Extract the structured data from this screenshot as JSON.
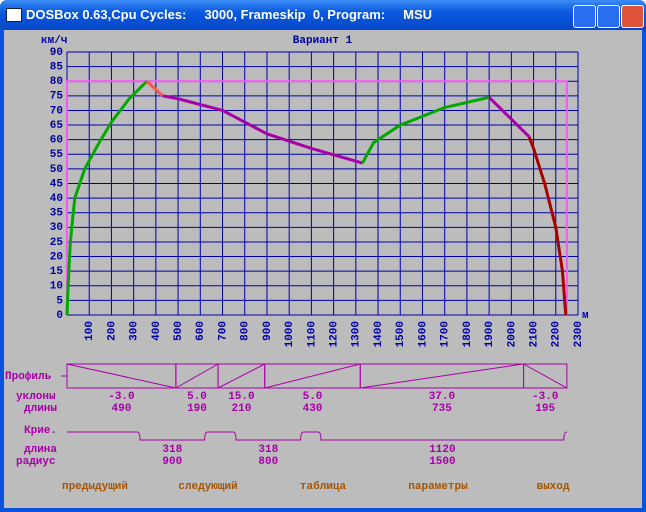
{
  "window": {
    "title": "DOSBox 0.63,Cpu Cycles:     3000, Frameskip  0, Program:     MSU"
  },
  "chart_data": {
    "type": "line",
    "title": "Вариант 1",
    "y_label": "км/ч",
    "x_label": "м",
    "xlim": [
      0,
      2300
    ],
    "ylim": [
      0,
      90
    ],
    "xticks": [
      100,
      200,
      300,
      400,
      500,
      600,
      700,
      800,
      900,
      1000,
      1100,
      1200,
      1300,
      1400,
      1500,
      1600,
      1700,
      1800,
      1900,
      2000,
      2100,
      2200,
      2300
    ],
    "yticks": [
      0,
      5,
      10,
      15,
      20,
      25,
      30,
      35,
      40,
      45,
      50,
      55,
      60,
      65,
      70,
      75,
      80,
      85,
      90
    ],
    "grid": true,
    "series": [
      {
        "color": "#fc54fc",
        "x": [
          0,
          0,
          2250,
          2250
        ],
        "values": [
          0,
          80,
          80,
          0
        ]
      },
      {
        "color": "#00a800",
        "x": [
          0,
          5,
          15,
          35,
          80,
          145,
          200,
          280,
          360
        ],
        "values": [
          0,
          10,
          25,
          40,
          50,
          59,
          66,
          74,
          80
        ]
      },
      {
        "color": "#fc5454",
        "x": [
          360,
          430
        ],
        "values": [
          80,
          75
        ]
      },
      {
        "color": "#a800a8",
        "x": [
          430,
          500,
          700,
          900,
          1100,
          1330
        ],
        "values": [
          75,
          74,
          70,
          62,
          57,
          52
        ]
      },
      {
        "color": "#00a800",
        "x": [
          1330,
          1380,
          1500,
          1700,
          1900
        ],
        "values": [
          52,
          59,
          65,
          71,
          74.5
        ]
      },
      {
        "color": "#a800a8",
        "x": [
          1900,
          2080
        ],
        "values": [
          74.5,
          61
        ]
      },
      {
        "color": "#a80000",
        "x": [
          2080,
          2100,
          2150,
          2200,
          2230,
          2245
        ],
        "values": [
          61,
          57,
          45,
          30,
          15,
          0
        ]
      }
    ]
  },
  "profile": {
    "label": "Профиль",
    "slopes_label": "уклоны",
    "lengths_label": "длины",
    "segments": [
      {
        "slope": "-3.0",
        "length": 490
      },
      {
        "slope": "5.0",
        "length": 190
      },
      {
        "slope": "15.0",
        "length": 210
      },
      {
        "slope": "5.0",
        "length": 430
      },
      {
        "slope": "37.0",
        "length": 735
      },
      {
        "slope": "-3.0",
        "length": 195
      }
    ]
  },
  "curves": {
    "label": "Крие.",
    "length_label": "длина",
    "radius_label": "радиус",
    "items": [
      {
        "length": 318,
        "radius": 900
      },
      {
        "length": 318,
        "radius": 800
      },
      {
        "length": 1120,
        "radius": 1500
      }
    ]
  },
  "buttons": [
    "предыдущий",
    "следующий",
    "таблица",
    "параметры",
    "выход"
  ]
}
